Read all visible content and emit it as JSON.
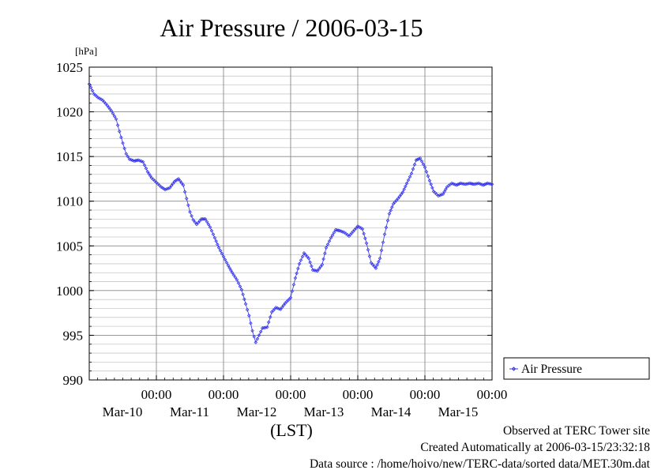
{
  "chart_data": {
    "type": "line",
    "title": "Air Pressure / 2006-03-15",
    "ylabel": "[hPa]",
    "xlabel": "(LST)",
    "ylim": [
      990,
      1025
    ],
    "yticks": [
      990,
      995,
      1000,
      1005,
      1010,
      1015,
      1020,
      1025
    ],
    "ytick_labels": [
      "990",
      "995",
      "1000",
      "1005",
      "1010",
      "1015",
      "1020",
      "1025"
    ],
    "xlim_days": [
      9.0,
      15.0
    ],
    "xticks": [
      {
        "day": 10,
        "time": "00:00",
        "date": "Mar-10"
      },
      {
        "day": 11,
        "time": "00:00",
        "date": "Mar-11"
      },
      {
        "day": 12,
        "time": "00:00",
        "date": "Mar-12"
      },
      {
        "day": 13,
        "time": "00:00",
        "date": "Mar-13"
      },
      {
        "day": 14,
        "time": "00:00",
        "date": "Mar-14"
      },
      {
        "day": 15,
        "time": "00:00",
        "date": "Mar-15"
      }
    ],
    "grid": true,
    "legend_position": "right",
    "series": [
      {
        "name": "Air Pressure",
        "color": "#3333ee",
        "marker": "diamond",
        "points": [
          [
            9.0,
            1023.1
          ],
          [
            9.07,
            1022.0
          ],
          [
            9.13,
            1021.6
          ],
          [
            9.2,
            1021.3
          ],
          [
            9.27,
            1020.7
          ],
          [
            9.33,
            1020.1
          ],
          [
            9.4,
            1019.2
          ],
          [
            9.45,
            1017.8
          ],
          [
            9.5,
            1016.5
          ],
          [
            9.55,
            1015.3
          ],
          [
            9.6,
            1014.7
          ],
          [
            9.67,
            1014.5
          ],
          [
            9.73,
            1014.6
          ],
          [
            9.8,
            1014.4
          ],
          [
            9.87,
            1013.3
          ],
          [
            9.93,
            1012.6
          ],
          [
            10.0,
            1012.1
          ],
          [
            10.07,
            1011.6
          ],
          [
            10.13,
            1011.3
          ],
          [
            10.2,
            1011.5
          ],
          [
            10.27,
            1012.2
          ],
          [
            10.33,
            1012.5
          ],
          [
            10.4,
            1011.8
          ],
          [
            10.45,
            1010.3
          ],
          [
            10.5,
            1008.8
          ],
          [
            10.55,
            1007.9
          ],
          [
            10.6,
            1007.4
          ],
          [
            10.67,
            1008.0
          ],
          [
            10.73,
            1008.0
          ],
          [
            10.8,
            1007.1
          ],
          [
            10.87,
            1005.9
          ],
          [
            10.93,
            1004.8
          ],
          [
            11.0,
            1003.8
          ],
          [
            11.07,
            1002.8
          ],
          [
            11.13,
            1002.0
          ],
          [
            11.2,
            1001.2
          ],
          [
            11.27,
            1000.1
          ],
          [
            11.33,
            998.5
          ],
          [
            11.38,
            997.2
          ],
          [
            11.43,
            995.5
          ],
          [
            11.48,
            994.2
          ],
          [
            11.53,
            995.0
          ],
          [
            11.58,
            995.8
          ],
          [
            11.65,
            995.9
          ],
          [
            11.72,
            997.6
          ],
          [
            11.78,
            998.1
          ],
          [
            11.85,
            997.9
          ],
          [
            11.92,
            998.6
          ],
          [
            12.0,
            999.2
          ],
          [
            12.07,
            1001.4
          ],
          [
            12.13,
            1003.0
          ],
          [
            12.2,
            1004.2
          ],
          [
            12.27,
            1003.6
          ],
          [
            12.33,
            1002.3
          ],
          [
            12.4,
            1002.2
          ],
          [
            12.47,
            1002.9
          ],
          [
            12.53,
            1004.8
          ],
          [
            12.6,
            1005.9
          ],
          [
            12.67,
            1006.8
          ],
          [
            12.73,
            1006.7
          ],
          [
            12.8,
            1006.5
          ],
          [
            12.87,
            1006.1
          ],
          [
            12.93,
            1006.6
          ],
          [
            13.0,
            1007.2
          ],
          [
            13.07,
            1006.9
          ],
          [
            13.13,
            1005.3
          ],
          [
            13.2,
            1003.1
          ],
          [
            13.27,
            1002.5
          ],
          [
            13.33,
            1003.6
          ],
          [
            13.4,
            1006.3
          ],
          [
            13.47,
            1008.6
          ],
          [
            13.53,
            1009.7
          ],
          [
            13.6,
            1010.3
          ],
          [
            13.67,
            1011.0
          ],
          [
            13.73,
            1012.0
          ],
          [
            13.8,
            1013.1
          ],
          [
            13.87,
            1014.6
          ],
          [
            13.93,
            1014.8
          ],
          [
            14.0,
            1013.8
          ],
          [
            14.07,
            1012.3
          ],
          [
            14.13,
            1011.1
          ],
          [
            14.2,
            1010.6
          ],
          [
            14.27,
            1010.8
          ],
          [
            14.33,
            1011.6
          ],
          [
            14.4,
            1012.0
          ],
          [
            14.47,
            1011.8
          ],
          [
            14.53,
            1012.0
          ],
          [
            14.6,
            1011.9
          ],
          [
            14.67,
            1012.0
          ],
          [
            14.73,
            1011.9
          ],
          [
            14.8,
            1012.0
          ],
          [
            14.87,
            1011.8
          ],
          [
            14.93,
            1012.0
          ],
          [
            15.0,
            1011.9
          ]
        ]
      }
    ]
  },
  "footer": {
    "line1": "Observed at TERC Tower site",
    "line2": "Created Automatically at 2006-03-15/23:32:18",
    "line3": "Data source : /home/hoivo/new/TERC-data/sorted  data/MET.30m.dat"
  }
}
